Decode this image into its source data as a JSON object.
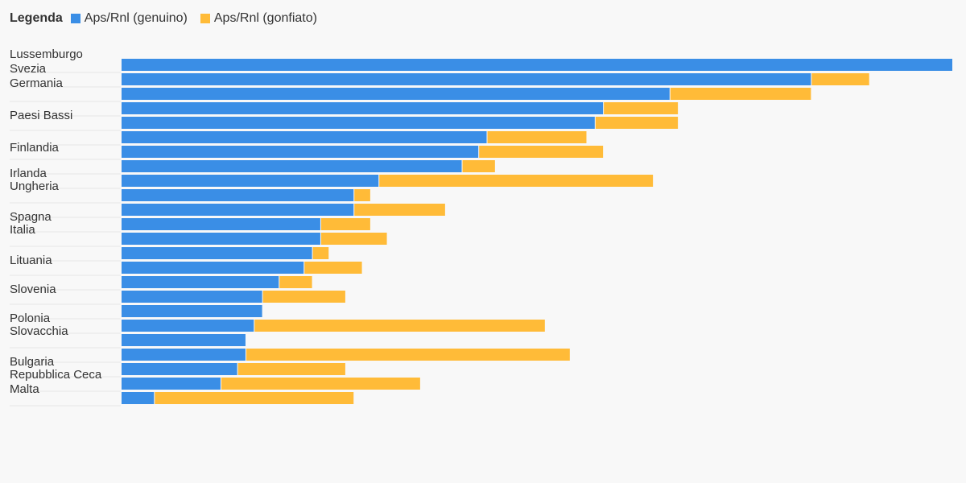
{
  "legend": {
    "title": "Legenda",
    "genuine_label": "Aps/Rnl (genuino)",
    "inflated_label": "Aps/Rnl (gonfiato)",
    "genuine_color": "#3a8ee6",
    "inflated_color": "#ffbb38"
  },
  "chart_data": {
    "type": "bar",
    "orientation": "horizontal",
    "stacked": true,
    "xlim": [
      0,
      1.0
    ],
    "grid": false,
    "legend_position": "top-left",
    "categories": [
      "Lussemburgo",
      "Svezia",
      "Germania",
      "",
      "Paesi Bassi",
      "",
      "Finlandia",
      "",
      "Irlanda",
      "Ungheria",
      "",
      "Spagna",
      "Italia",
      "",
      "Lituania",
      "",
      "Slovenia",
      "",
      "Polonia",
      "Slovacchia",
      "",
      "Bulgaria",
      "Repubblica Ceca",
      "Malta"
    ],
    "series": [
      {
        "name": "Aps/Rnl (genuino)",
        "color": "#3a8ee6",
        "values": [
          1.0,
          0.83,
          0.66,
          0.58,
          0.57,
          0.44,
          0.43,
          0.41,
          0.31,
          0.28,
          0.28,
          0.24,
          0.24,
          0.23,
          0.22,
          0.19,
          0.17,
          0.17,
          0.16,
          0.15,
          0.15,
          0.14,
          0.12,
          0.04
        ]
      },
      {
        "name": "Aps/Rnl (gonfiato)",
        "color": "#ffbb38",
        "values": [
          0.0,
          0.07,
          0.17,
          0.09,
          0.1,
          0.12,
          0.15,
          0.04,
          0.33,
          0.02,
          0.11,
          0.06,
          0.08,
          0.02,
          0.07,
          0.04,
          0.1,
          0.0,
          0.35,
          0.0,
          0.39,
          0.13,
          0.24,
          0.24
        ]
      }
    ]
  }
}
